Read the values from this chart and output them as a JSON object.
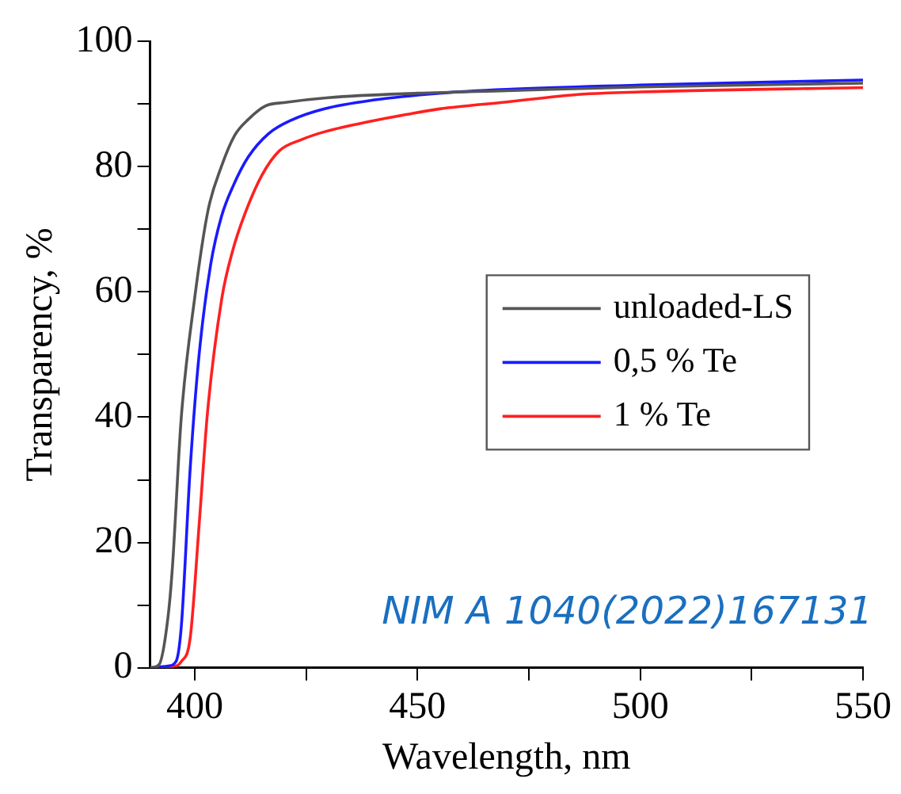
{
  "chart_data": {
    "type": "line",
    "xlabel": "Wavelength, nm",
    "ylabel": "Transparency, %",
    "xlim": [
      390,
      550
    ],
    "xticks": [
      400,
      {
        "value": 425,
        "label": null
      },
      450,
      {
        "value": 475,
        "label": null
      },
      500,
      {
        "value": 525,
        "label": null
      },
      550
    ],
    "ylim": [
      0,
      100
    ],
    "yticks": [
      0,
      {
        "value": 10,
        "label": null
      },
      20,
      {
        "value": 30,
        "label": null
      },
      40,
      {
        "value": 50,
        "label": null
      },
      60,
      {
        "value": 70,
        "label": null
      },
      80,
      {
        "value": 90,
        "label": null
      },
      100
    ],
    "grid": false,
    "legend": "right",
    "marker": "none",
    "line_style": "solid",
    "annotations": [
      "NIM A 1040(2022)167131"
    ],
    "series": [
      {
        "name": "unloaded-LS",
        "color": "#555555",
        "x": [
          390,
          392,
          394,
          395,
          397,
          400,
          403,
          406,
          409,
          412,
          416,
          420,
          430,
          450,
          470,
          500,
          550
        ],
        "values": [
          0,
          0.5,
          8,
          16,
          40,
          59,
          73,
          80,
          85,
          87.5,
          89.7,
          90.2,
          91,
          91.7,
          92.1,
          92.7,
          93.3
        ]
      },
      {
        "name": "0,5 % Te",
        "color": "#1a1aff",
        "x": [
          390,
          394,
          395.8,
          397,
          399,
          401,
          403.6,
          406,
          408.7,
          412,
          416.5,
          422,
          429,
          440,
          455,
          470,
          500,
          550
        ],
        "values": [
          0,
          0.3,
          1,
          6.6,
          31.9,
          50,
          64.4,
          72,
          77,
          81.5,
          85.2,
          87.5,
          89.2,
          90.6,
          91.7,
          92.3,
          93,
          93.8
        ]
      },
      {
        "name": "1 % Te",
        "color": "#ff2020",
        "x": [
          390,
          395,
          397,
          399,
          401,
          402.9,
          406.1,
          408.5,
          411.3,
          415,
          419,
          424,
          429.4,
          440,
          447.5,
          455,
          470,
          486,
          500,
          550
        ],
        "values": [
          0,
          0.2,
          1,
          4.8,
          22.8,
          40.9,
          59,
          66.5,
          72.5,
          78.5,
          82.5,
          84.3,
          85.6,
          87.3,
          88.3,
          89.2,
          90.3,
          91.5,
          91.9,
          92.6
        ]
      }
    ]
  }
}
